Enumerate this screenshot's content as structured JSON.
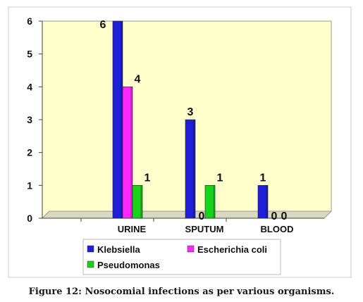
{
  "chart_data": {
    "type": "bar",
    "categories": [
      "URINE",
      "SPUTUM",
      "BLOOD"
    ],
    "series": [
      {
        "name": "Klebsiella",
        "values": [
          6,
          3,
          1
        ],
        "color": "#1f1fd6"
      },
      {
        "name": "Escherichia coli",
        "values": [
          4,
          0,
          0
        ],
        "color": "#ff29ff"
      },
      {
        "name": "Pseudomonas",
        "values": [
          1,
          1,
          0
        ],
        "color": "#19d219"
      }
    ],
    "ylim": [
      0,
      6
    ],
    "yticks": [
      0,
      1,
      2,
      3,
      4,
      5,
      6
    ],
    "grid": false,
    "legend_position": "bottom",
    "plot_background": "#ffffcc",
    "outer_background": "#ffffff",
    "chart_area_border": "#cccccc"
  },
  "caption": "Figure 12: Nosocomial infections as per various organisms."
}
